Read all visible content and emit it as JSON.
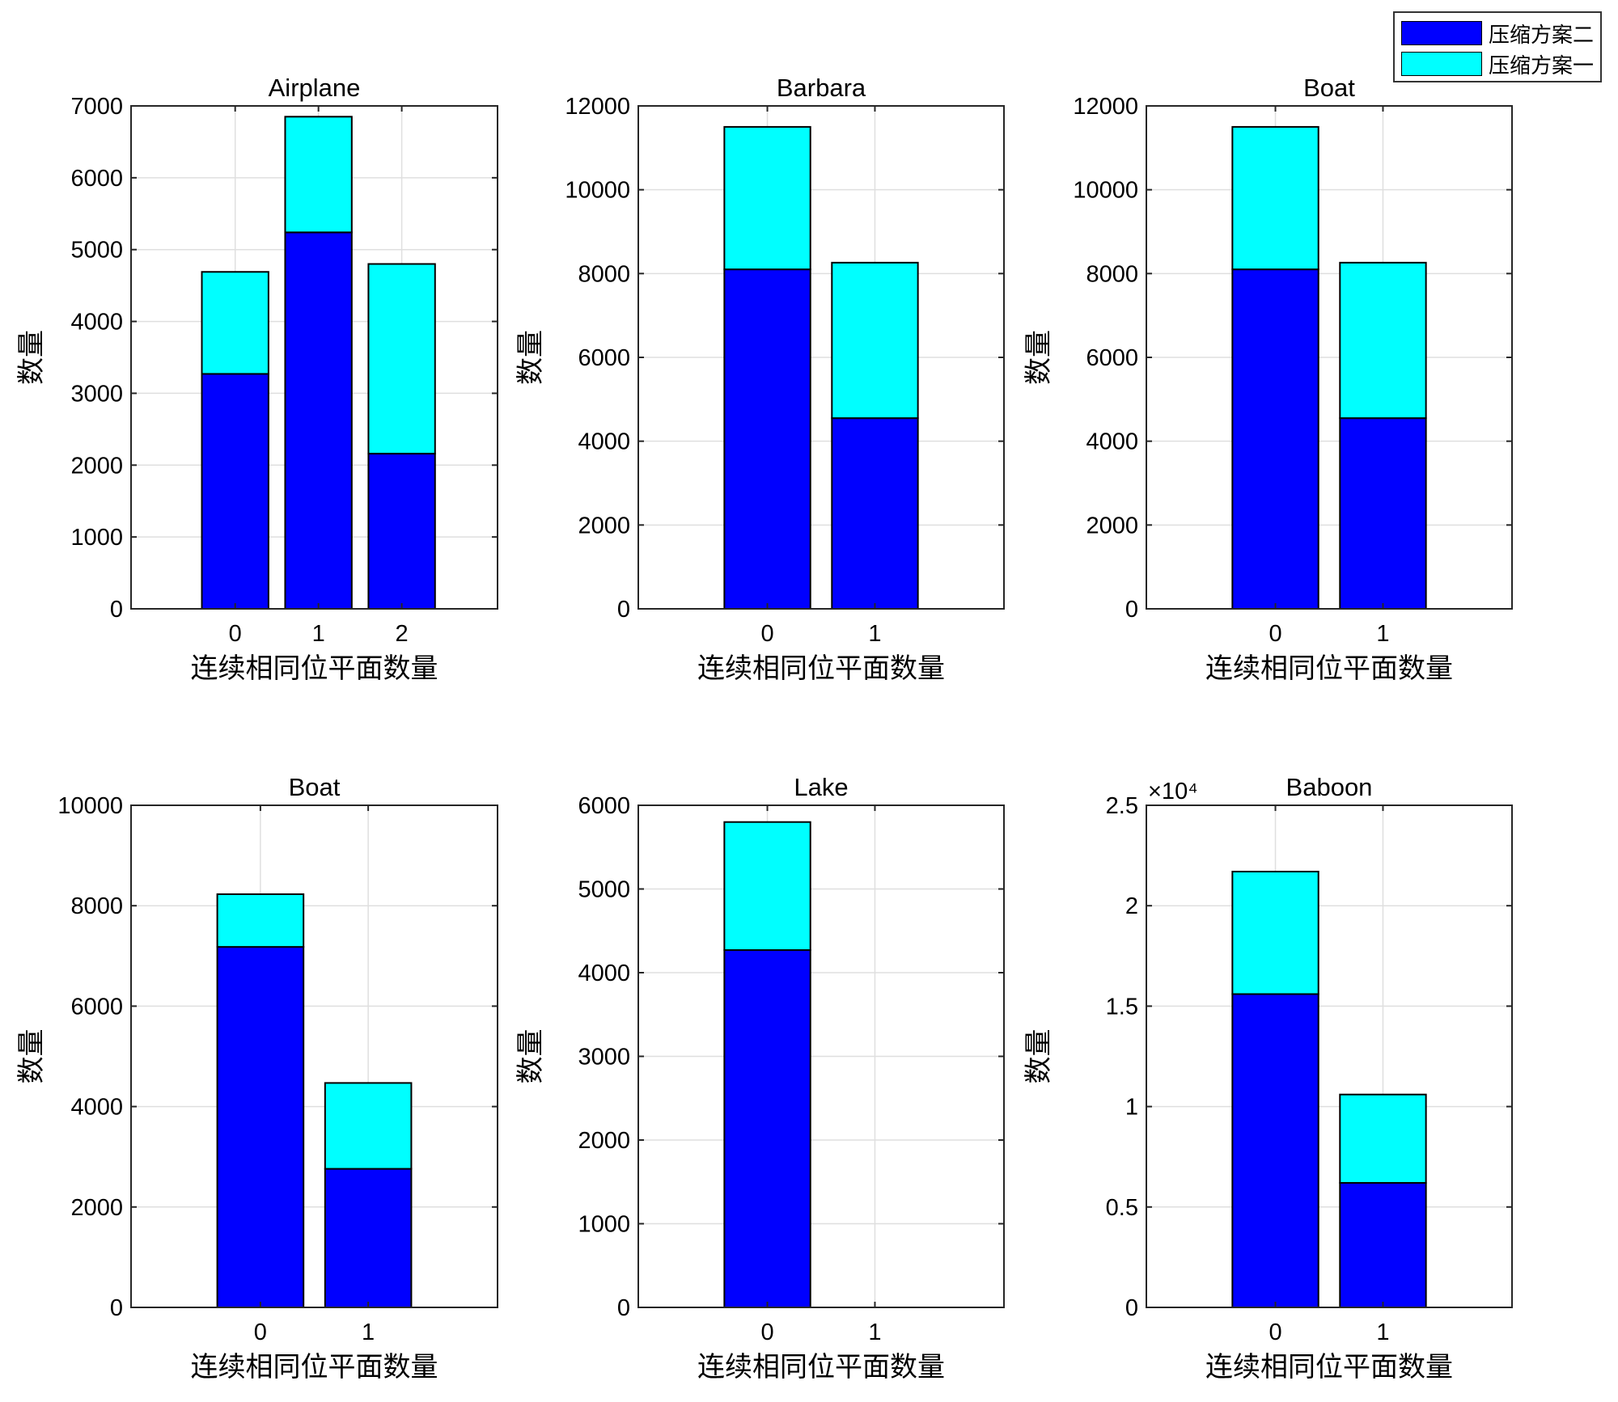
{
  "legend": {
    "items": [
      {
        "label": "压缩方案二",
        "color": "#0000ff"
      },
      {
        "label": "压缩方案一",
        "color": "#00ffff"
      }
    ]
  },
  "chart_data": [
    {
      "type": "bar",
      "stacked": true,
      "title": "Airplane",
      "xlabel": "连续相同位平面数量",
      "ylabel": "数量",
      "categories": [
        "0",
        "1",
        "2"
      ],
      "xlim": [
        -1.25,
        3.15
      ],
      "ylim": [
        0,
        7000
      ],
      "yticks": [
        0,
        1000,
        2000,
        3000,
        4000,
        5000,
        6000,
        7000
      ],
      "ytick_labels": [
        "0",
        "1000",
        "2000",
        "3000",
        "4000",
        "5000",
        "6000",
        "7000"
      ],
      "exponent_label": "",
      "series": [
        {
          "name": "压缩方案二",
          "values": [
            3270,
            5240,
            2160
          ]
        },
        {
          "name": "压缩方案一",
          "values": [
            1420,
            1610,
            2640
          ]
        }
      ],
      "totals": [
        4690,
        6850,
        4800
      ]
    },
    {
      "type": "bar",
      "stacked": true,
      "title": "Barbara",
      "xlabel": "连续相同位平面数量",
      "ylabel": "数量",
      "categories": [
        "0",
        "1"
      ],
      "xlim": [
        -1.2,
        2.2
      ],
      "ylim": [
        0,
        12000
      ],
      "yticks": [
        0,
        2000,
        4000,
        6000,
        8000,
        10000,
        12000
      ],
      "ytick_labels": [
        "0",
        "2000",
        "4000",
        "6000",
        "8000",
        "10000",
        "12000"
      ],
      "exponent_label": "",
      "series": [
        {
          "name": "压缩方案二",
          "values": [
            8100,
            4550
          ]
        },
        {
          "name": "压缩方案一",
          "values": [
            3400,
            3710
          ]
        }
      ],
      "totals": [
        11500,
        8260
      ]
    },
    {
      "type": "bar",
      "stacked": true,
      "title": "Boat",
      "xlabel": "连续相同位平面数量",
      "ylabel": "数量",
      "categories": [
        "0",
        "1"
      ],
      "xlim": [
        -1.2,
        2.2
      ],
      "ylim": [
        0,
        12000
      ],
      "yticks": [
        0,
        2000,
        4000,
        6000,
        8000,
        10000,
        12000
      ],
      "ytick_labels": [
        "0",
        "2000",
        "4000",
        "6000",
        "8000",
        "10000",
        "12000"
      ],
      "exponent_label": "",
      "series": [
        {
          "name": "压缩方案二",
          "values": [
            8100,
            4550
          ]
        },
        {
          "name": "压缩方案一",
          "values": [
            3400,
            3710
          ]
        }
      ],
      "totals": [
        11500,
        8260
      ]
    },
    {
      "type": "bar",
      "stacked": true,
      "title": "Boat",
      "xlabel": "连续相同位平面数量",
      "ylabel": "数量",
      "categories": [
        "0",
        "1"
      ],
      "xlim": [
        -1.2,
        2.2
      ],
      "ylim": [
        0,
        10000
      ],
      "yticks": [
        0,
        2000,
        4000,
        6000,
        8000,
        10000
      ],
      "ytick_labels": [
        "0",
        "2000",
        "4000",
        "6000",
        "8000",
        "10000"
      ],
      "exponent_label": "",
      "series": [
        {
          "name": "压缩方案二",
          "values": [
            7180,
            2760
          ]
        },
        {
          "name": "压缩方案一",
          "values": [
            1050,
            1710
          ]
        }
      ],
      "totals": [
        8230,
        4470
      ]
    },
    {
      "type": "bar",
      "stacked": true,
      "title": "Lake",
      "xlabel": "连续相同位平面数量",
      "ylabel": "数量",
      "categories": [
        "0",
        "1"
      ],
      "xlim": [
        -1.2,
        2.2
      ],
      "ylim": [
        0,
        6000
      ],
      "yticks": [
        0,
        1000,
        2000,
        3000,
        4000,
        5000,
        6000
      ],
      "ytick_labels": [
        "0",
        "1000",
        "2000",
        "3000",
        "4000",
        "5000",
        "6000"
      ],
      "exponent_label": "",
      "series": [
        {
          "name": "压缩方案二",
          "values": [
            4270,
            0
          ]
        },
        {
          "name": "压缩方案一",
          "values": [
            1530,
            0
          ]
        }
      ],
      "totals": [
        5800,
        0
      ]
    },
    {
      "type": "bar",
      "stacked": true,
      "title": "Baboon",
      "xlabel": "连续相同位平面数量",
      "ylabel": "数量",
      "categories": [
        "0",
        "1"
      ],
      "xlim": [
        -1.2,
        2.2
      ],
      "ylim": [
        0,
        25000
      ],
      "yticks": [
        0,
        5000,
        10000,
        15000,
        20000,
        25000
      ],
      "ytick_labels": [
        "0",
        "0.5",
        "1",
        "1.5",
        "2",
        "2.5"
      ],
      "exponent_label": "×10⁴",
      "series": [
        {
          "name": "压缩方案二",
          "values": [
            15600,
            6200
          ]
        },
        {
          "name": "压缩方案一",
          "values": [
            6100,
            4400
          ]
        }
      ],
      "totals": [
        21700,
        10600
      ]
    }
  ]
}
